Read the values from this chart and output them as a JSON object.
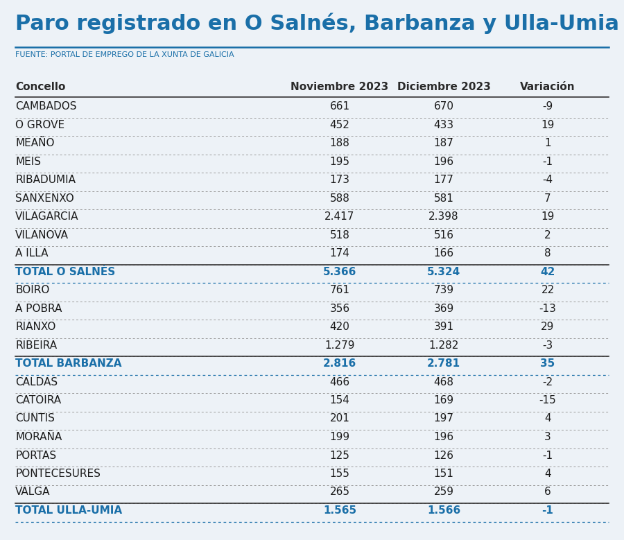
{
  "title": "Paro registrado en O Salnés, Barbanza y Ulla-Umia",
  "source": "FUENTE: PORTAL DE EMPREGO DE LA XUNTA DE GALICIA",
  "col_headers": [
    "Concello",
    "Noviembre 2023",
    "Diciembre 2023",
    "Variación"
  ],
  "rows": [
    {
      "name": "CAMBADOS",
      "nov": "661",
      "dec": "670",
      "var": "-9",
      "is_total": false
    },
    {
      "name": "O GROVE",
      "nov": "452",
      "dec": "433",
      "var": "19",
      "is_total": false
    },
    {
      "name": "MEAÑO",
      "nov": "188",
      "dec": "187",
      "var": "1",
      "is_total": false
    },
    {
      "name": "MEIS",
      "nov": "195",
      "dec": "196",
      "var": "-1",
      "is_total": false
    },
    {
      "name": "RIBADUMIA",
      "nov": "173",
      "dec": "177",
      "var": "-4",
      "is_total": false
    },
    {
      "name": "SANXENXO",
      "nov": "588",
      "dec": "581",
      "var": "7",
      "is_total": false
    },
    {
      "name": "VILAGARCIA",
      "nov": "2.417",
      "dec": "2.398",
      "var": "19",
      "is_total": false
    },
    {
      "name": "VILANOVA",
      "nov": "518",
      "dec": "516",
      "var": "2",
      "is_total": false
    },
    {
      "name": "A ILLA",
      "nov": "174",
      "dec": "166",
      "var": "8",
      "is_total": false
    },
    {
      "name": "TOTAL O SALNÉS",
      "nov": "5.366",
      "dec": "5.324",
      "var": "42",
      "is_total": true
    },
    {
      "name": "BOIRO",
      "nov": "761",
      "dec": "739",
      "var": "22",
      "is_total": false
    },
    {
      "name": "A POBRA",
      "nov": "356",
      "dec": "369",
      "var": "-13",
      "is_total": false
    },
    {
      "name": "RIANXO",
      "nov": "420",
      "dec": "391",
      "var": "29",
      "is_total": false
    },
    {
      "name": "RIBEIRA",
      "nov": "1.279",
      "dec": "1.282",
      "var": "-3",
      "is_total": false
    },
    {
      "name": "TOTAL BARBANZA",
      "nov": "2.816",
      "dec": "2.781",
      "var": "35",
      "is_total": true
    },
    {
      "name": "CALDAS",
      "nov": "466",
      "dec": "468",
      "var": "-2",
      "is_total": false
    },
    {
      "name": "CATOIRA",
      "nov": "154",
      "dec": "169",
      "var": "-15",
      "is_total": false
    },
    {
      "name": "CUNTIS",
      "nov": "201",
      "dec": "197",
      "var": "4",
      "is_total": false
    },
    {
      "name": "MORAÑA",
      "nov": "199",
      "dec": "196",
      "var": "3",
      "is_total": false
    },
    {
      "name": "PORTAS",
      "nov": "125",
      "dec": "126",
      "var": "-1",
      "is_total": false
    },
    {
      "name": "PONTECESURES",
      "nov": "155",
      "dec": "151",
      "var": "4",
      "is_total": false
    },
    {
      "name": "VALGA",
      "nov": "265",
      "dec": "259",
      "var": "6",
      "is_total": false
    },
    {
      "name": "TOTAL ULLA-UMIA",
      "nov": "1.565",
      "dec": "1.566",
      "var": "-1",
      "is_total": true
    }
  ],
  "title_color": "#1a6fa8",
  "source_color": "#1a6fa8",
  "header_color": "#2a2a2a",
  "normal_color": "#1a1a1a",
  "total_color": "#1a6fa8",
  "bg_color": "#edf2f7",
  "line_color_dotted": "#999999",
  "line_color_solid": "#333333",
  "line_color_blue": "#1a6fa8",
  "title_fontsize": 22,
  "source_fontsize": 8,
  "header_fontsize": 11,
  "row_fontsize": 11
}
